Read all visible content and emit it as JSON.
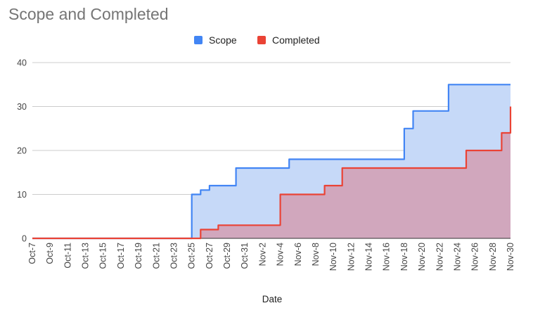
{
  "chart_data": {
    "type": "area",
    "title": "Scope and Completed",
    "xlabel": "Date",
    "ylabel": "",
    "ylim": [
      0,
      40
    ],
    "yticks": [
      0,
      10,
      20,
      30,
      40
    ],
    "grid": true,
    "legend_position": "top",
    "step": true,
    "x_start": "Oct-7",
    "x_end": "Nov-30",
    "x_tick_labels": [
      "Oct-7",
      "Oct-9",
      "Oct-11",
      "Oct-13",
      "Oct-15",
      "Oct-17",
      "Oct-19",
      "Oct-21",
      "Oct-23",
      "Oct-25",
      "Oct-27",
      "Oct-29",
      "Oct-31",
      "Nov-2",
      "Nov-4",
      "Nov-6",
      "Nov-8",
      "Nov-10",
      "Nov-12",
      "Nov-14",
      "Nov-16",
      "Nov-18",
      "Nov-20",
      "Nov-22",
      "Nov-24",
      "Nov-26",
      "Nov-28",
      "Nov-30"
    ],
    "series": [
      {
        "name": "Scope",
        "color": "#4285f4",
        "fill": "#c6d9f8",
        "points": [
          [
            "Oct-7",
            0
          ],
          [
            "Oct-25",
            10
          ],
          [
            "Oct-26",
            11
          ],
          [
            "Oct-27",
            12
          ],
          [
            "Oct-30",
            16
          ],
          [
            "Nov-5",
            18
          ],
          [
            "Nov-18",
            25
          ],
          [
            "Nov-19",
            29
          ],
          [
            "Nov-23",
            35
          ],
          [
            "Nov-30",
            35
          ]
        ]
      },
      {
        "name": "Completed",
        "color": "#ea4335",
        "fill": "#d1a7bd",
        "points": [
          [
            "Oct-7",
            0
          ],
          [
            "Oct-26",
            2
          ],
          [
            "Oct-28",
            3
          ],
          [
            "Nov-4",
            10
          ],
          [
            "Nov-9",
            12
          ],
          [
            "Nov-11",
            16
          ],
          [
            "Nov-25",
            20
          ],
          [
            "Nov-29",
            24
          ],
          [
            "Nov-30",
            30
          ]
        ]
      }
    ]
  }
}
